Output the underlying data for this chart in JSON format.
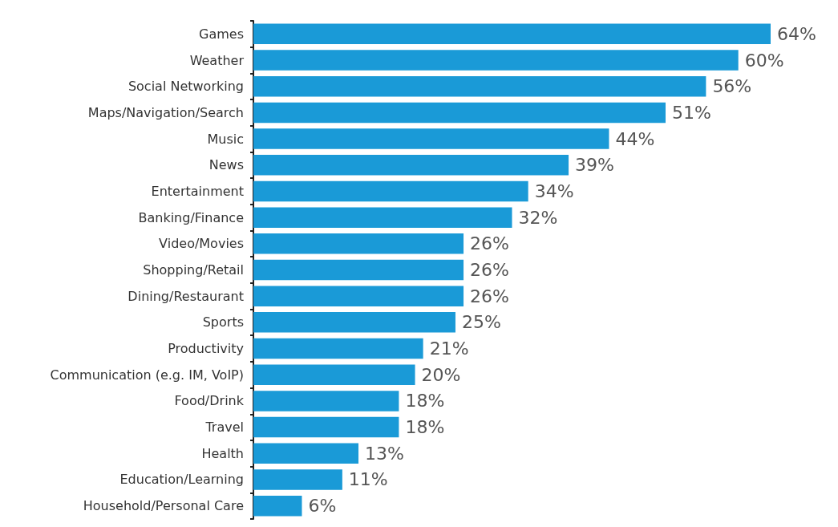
{
  "chart_data": {
    "type": "bar",
    "orientation": "horizontal",
    "categories": [
      "Games",
      "Weather",
      "Social Networking",
      "Maps/Navigation/Search",
      "Music",
      "News",
      "Entertainment",
      "Banking/Finance",
      "Video/Movies",
      "Shopping/Retail",
      "Dining/Restaurant",
      "Sports",
      "Productivity",
      "Communication (e.g. IM, VoIP)",
      "Food/Drink",
      "Travel",
      "Health",
      "Education/Learning",
      "Household/Personal Care"
    ],
    "values": [
      64,
      60,
      56,
      51,
      44,
      39,
      34,
      32,
      26,
      26,
      26,
      25,
      21,
      20,
      18,
      18,
      13,
      11,
      6
    ],
    "value_labels": [
      "64%",
      "60%",
      "56%",
      "51%",
      "44%",
      "39%",
      "34%",
      "32%",
      "26%",
      "26%",
      "26%",
      "25%",
      "21%",
      "20%",
      "18%",
      "18%",
      "13%",
      "11%",
      "6%"
    ],
    "color": "#1a9ad7",
    "grid": false
  }
}
